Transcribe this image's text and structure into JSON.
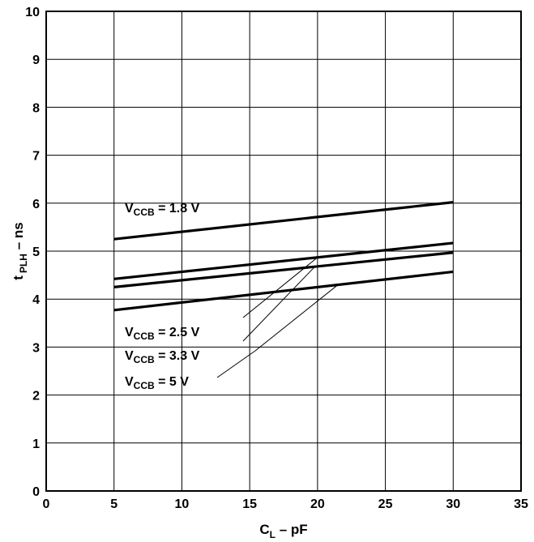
{
  "chart_data": {
    "type": "line",
    "xlabel": {
      "main": "C",
      "sub": "L",
      "rest": " – pF"
    },
    "ylabel": {
      "main": "t",
      "sub": "PLH",
      "rest": " – ns"
    },
    "xlim": [
      0,
      35
    ],
    "ylim": [
      0,
      10
    ],
    "xticks": [
      "0",
      "5",
      "10",
      "15",
      "20",
      "25",
      "30",
      "35"
    ],
    "yticks": [
      "0",
      "1",
      "2",
      "3",
      "4",
      "5",
      "6",
      "7",
      "8",
      "9",
      "10"
    ],
    "grid": true,
    "series": [
      {
        "name": "V_CCB = 1.8 V",
        "label_main": "V",
        "label_sub": "CCB",
        "label_rest": " = 1.8 V",
        "x": [
          5,
          30
        ],
        "y": [
          5.25,
          6.02
        ]
      },
      {
        "name": "V_CCB = 2.5 V",
        "label_main": "V",
        "label_sub": "CCB",
        "label_rest": " = 2.5 V",
        "x": [
          5,
          30
        ],
        "y": [
          4.42,
          5.17
        ]
      },
      {
        "name": "V_CCB = 3.3 V",
        "label_main": "V",
        "label_sub": "CCB",
        "label_rest": " = 3.3 V",
        "x": [
          5,
          30
        ],
        "y": [
          4.25,
          4.97
        ]
      },
      {
        "name": "V_CCB = 5 V",
        "label_main": "V",
        "label_sub": "CCB",
        "label_rest": " = 5 V",
        "x": [
          5,
          30
        ],
        "y": [
          3.77,
          4.57
        ]
      }
    ]
  }
}
